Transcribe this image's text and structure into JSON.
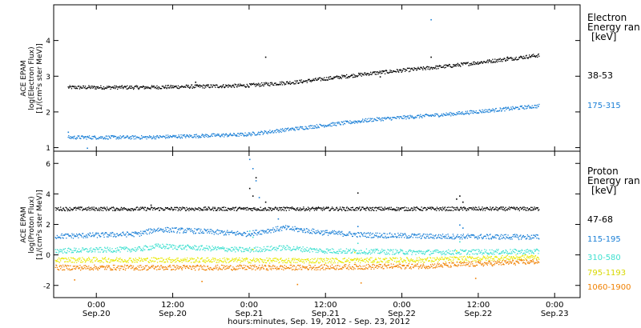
{
  "figure": {
    "xlabel": "hours:minutes, Sep. 19, 2012 - Sep. 23, 2012",
    "x_ticks": [
      {
        "t": 28.5,
        "l1": "0:00",
        "l2": "Sep.20"
      },
      {
        "t": 40.5,
        "l1": "12:00",
        "l2": "Sep.20"
      },
      {
        "t": 52.5,
        "l1": "0:00",
        "l2": "Sep.21"
      },
      {
        "t": 64.5,
        "l1": "12:00",
        "l2": "Sep.21"
      },
      {
        "t": 76.5,
        "l1": "0:00",
        "l2": "Sep.22"
      },
      {
        "t": 88.5,
        "l1": "12:00",
        "l2": "Sep.22"
      },
      {
        "t": 100.5,
        "l1": "0:00",
        "l2": "Sep.23"
      }
    ],
    "xlim_hours": [
      21.8,
      104.5
    ]
  },
  "chart_data": [
    {
      "type": "scatter",
      "ylabel": [
        "ACE EPAM",
        "log(Electron Flux)",
        "[1/(cm²s ster MeV)]"
      ],
      "ylim": [
        0.9,
        5.0
      ],
      "yticks": [
        1,
        2,
        3,
        4
      ],
      "legend": {
        "title": [
          "Electron",
          "Energy ran",
          "[keV]"
        ]
      },
      "series": [
        {
          "name": "38-53",
          "color": "#000000",
          "base": [
            [
              24,
              2.7
            ],
            [
              36,
              2.7
            ],
            [
              52,
              2.75
            ],
            [
              60,
              2.85
            ],
            [
              72,
              3.1
            ],
            [
              84,
              3.3
            ],
            [
              98,
              3.6
            ]
          ],
          "spikes": [
            [
              44,
              2.85
            ],
            [
              55,
              3.55
            ],
            [
              73,
              3.0
            ],
            [
              81,
              3.55
            ],
            [
              93,
              3.55
            ]
          ]
        },
        {
          "name": "175-315",
          "color": "#1a7fd6",
          "base": [
            [
              24,
              1.3
            ],
            [
              36,
              1.3
            ],
            [
              52,
              1.38
            ],
            [
              60,
              1.55
            ],
            [
              72,
              1.8
            ],
            [
              84,
              1.95
            ],
            [
              98,
              2.18
            ]
          ],
          "spikes": [
            [
              81,
              4.6
            ],
            [
              24,
              1.45
            ],
            [
              27,
              1.0
            ]
          ]
        }
      ]
    },
    {
      "type": "scatter",
      "ylabel": [
        "ACE EPAM",
        "log(Proton Flux)",
        "[1/(cm²s ster MeV)]"
      ],
      "ylim": [
        -2.8,
        6.8
      ],
      "yticks": [
        -2,
        0,
        2,
        4,
        6
      ],
      "legend": {
        "title": [
          "Proton",
          "Energy ran",
          "[keV]"
        ]
      },
      "series": [
        {
          "name": "47-68",
          "color": "#000000",
          "base": [
            [
              22,
              3.05
            ],
            [
              98,
              3.05
            ]
          ],
          "spikes": [
            [
              37,
              3.3
            ],
            [
              52.5,
              4.4
            ],
            [
              53,
              3.9
            ],
            [
              53.5,
              5.1
            ],
            [
              55,
              3.5
            ],
            [
              63,
              3.1
            ],
            [
              69.5,
              4.1
            ],
            [
              85,
              3.7
            ],
            [
              85.5,
              3.9
            ],
            [
              86,
              3.5
            ]
          ]
        },
        {
          "name": "115-195",
          "color": "#1a7fd6",
          "base": [
            [
              22,
              1.25
            ],
            [
              35,
              1.4
            ],
            [
              38,
              1.7
            ],
            [
              44,
              1.6
            ],
            [
              52,
              1.4
            ],
            [
              58,
              1.8
            ],
            [
              64,
              1.5
            ],
            [
              70,
              1.35
            ],
            [
              80,
              1.25
            ],
            [
              98,
              1.2
            ]
          ],
          "spikes": [
            [
              52.5,
              6.3
            ],
            [
              53,
              5.7
            ],
            [
              53.5,
              4.9
            ],
            [
              54,
              3.8
            ],
            [
              69.5,
              1.9
            ],
            [
              85.5,
              2.0
            ],
            [
              86,
              1.8
            ],
            [
              57,
              2.4
            ]
          ]
        },
        {
          "name": "310-580",
          "color": "#3fe0d0",
          "base": [
            [
              22,
              0.3
            ],
            [
              35,
              0.4
            ],
            [
              38,
              0.6
            ],
            [
              44,
              0.5
            ],
            [
              52,
              0.35
            ],
            [
              58,
              0.5
            ],
            [
              64,
              0.3
            ],
            [
              80,
              0.2
            ],
            [
              98,
              0.25
            ]
          ],
          "spikes": [
            [
              52.5,
              1.6
            ],
            [
              53,
              1.2
            ],
            [
              69.5,
              0.8
            ],
            [
              85.5,
              0.9
            ]
          ]
        },
        {
          "name": "795-1193",
          "color": "#e8e800",
          "base": [
            [
              22,
              -0.3
            ],
            [
              40,
              -0.3
            ],
            [
              60,
              -0.35
            ],
            [
              80,
              -0.3
            ],
            [
              98,
              -0.1
            ]
          ],
          "spikes": [
            [
              53,
              0.4
            ],
            [
              69,
              0.2
            ],
            [
              85,
              0.3
            ]
          ]
        },
        {
          "name": "1060-1900",
          "color": "#f08000",
          "base": [
            [
              22,
              -0.8
            ],
            [
              40,
              -0.8
            ],
            [
              60,
              -0.8
            ],
            [
              80,
              -0.7
            ],
            [
              98,
              -0.4
            ]
          ],
          "spikes": [
            [
              25,
              -1.6
            ],
            [
              45,
              -1.7
            ],
            [
              60,
              -1.9
            ],
            [
              70,
              -1.8
            ],
            [
              88,
              -1.5
            ]
          ]
        }
      ]
    }
  ]
}
